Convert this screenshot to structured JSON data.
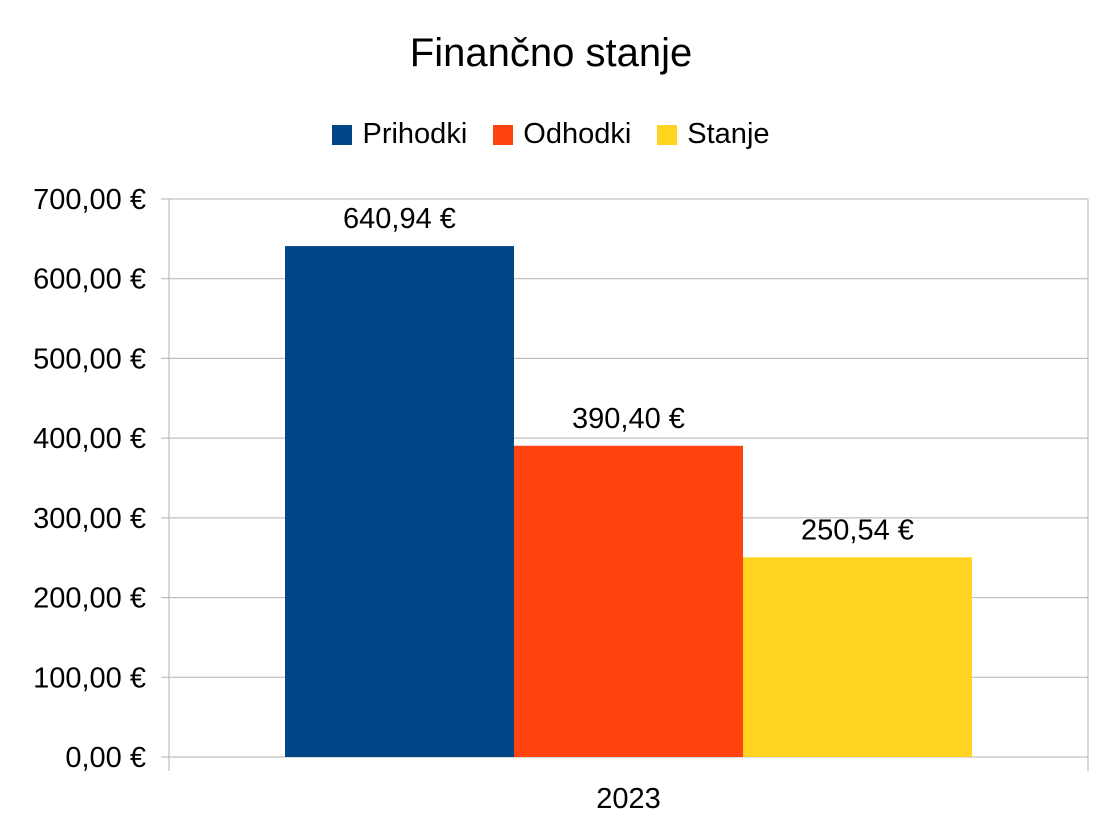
{
  "chart_data": {
    "type": "bar",
    "title": "Finančno stanje",
    "categories": [
      "2023"
    ],
    "series": [
      {
        "name": "Prihodki",
        "values": [
          640.94
        ],
        "label": "640,94 €",
        "color": "#004586"
      },
      {
        "name": "Odhodki",
        "values": [
          390.4
        ],
        "label": "390,40 €",
        "color": "#ff420e"
      },
      {
        "name": "Stanje",
        "values": [
          250.54
        ],
        "label": "250,54 €",
        "color": "#ffd320"
      }
    ],
    "ylim": [
      0,
      700
    ],
    "yticks": [
      {
        "value": 0,
        "label": "0,00 €"
      },
      {
        "value": 100,
        "label": "100,00 €"
      },
      {
        "value": 200,
        "label": "200,00 €"
      },
      {
        "value": 300,
        "label": "300,00 €"
      },
      {
        "value": 400,
        "label": "400,00 €"
      },
      {
        "value": 500,
        "label": "500,00 €"
      },
      {
        "value": 600,
        "label": "600,00 €"
      },
      {
        "value": 700,
        "label": "700,00 €"
      }
    ],
    "xlabel": "",
    "ylabel": "",
    "grid": true,
    "legend_position": "top",
    "colors": {
      "grid": "#b3b3b3"
    }
  }
}
